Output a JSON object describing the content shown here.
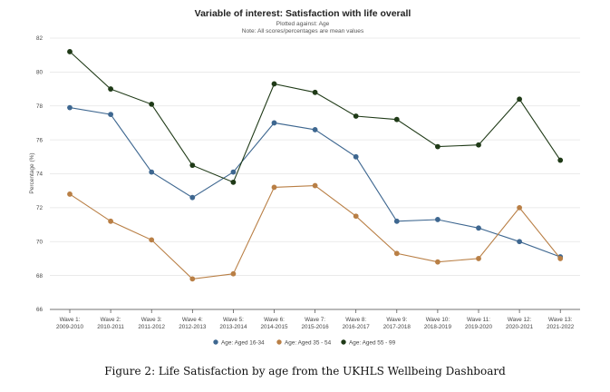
{
  "chart_data": {
    "type": "line",
    "title": "Variable of interest: Satisfaction with life overall",
    "subtitle": [
      "Plotted against: Age",
      "Note: All scores/percentages are mean values"
    ],
    "ylabel": "Percentage (%)",
    "xlabel": "",
    "ylim": [
      66,
      82
    ],
    "yticks": [
      66,
      68,
      70,
      72,
      74,
      76,
      78,
      80,
      82
    ],
    "grid": true,
    "legend": "bottom",
    "categories": [
      [
        "Wave 1:",
        "2009-2010"
      ],
      [
        "Wave 2:",
        "2010-2011"
      ],
      [
        "Wave 3:",
        "2011-2012"
      ],
      [
        "Wave 4:",
        "2012-2013"
      ],
      [
        "Wave 5:",
        "2013-2014"
      ],
      [
        "Wave 6:",
        "2014-2015"
      ],
      [
        "Wave 7:",
        "2015-2016"
      ],
      [
        "Wave 8:",
        "2016-2017"
      ],
      [
        "Wave 9:",
        "2017-2018"
      ],
      [
        "Wave 10:",
        "2018-2019"
      ],
      [
        "Wave 11:",
        "2019-2020"
      ],
      [
        "Wave 12:",
        "2020-2021"
      ],
      [
        "Wave 13:",
        "2021-2022"
      ]
    ],
    "series": [
      {
        "name": "Age: Aged 16-34",
        "color": "#3e6790",
        "values": [
          77.9,
          77.5,
          74.1,
          72.6,
          74.1,
          77.0,
          76.6,
          75.0,
          71.2,
          71.3,
          70.8,
          70.0,
          69.1
        ]
      },
      {
        "name": "Age: Aged 35 - 54",
        "color": "#b97f45",
        "values": [
          72.8,
          71.2,
          70.1,
          67.8,
          68.1,
          73.2,
          73.3,
          71.5,
          69.3,
          68.8,
          69.0,
          72.0,
          69.0
        ]
      },
      {
        "name": "Age: Aged 55 - 99",
        "color": "#1f3a17",
        "values": [
          81.2,
          79.0,
          78.1,
          74.5,
          73.5,
          79.3,
          78.8,
          77.4,
          77.2,
          75.6,
          75.7,
          78.4,
          74.8
        ]
      }
    ]
  },
  "caption": "Figure 2: Life Satisfaction by age from the UKHLS Wellbeing Dashboard"
}
